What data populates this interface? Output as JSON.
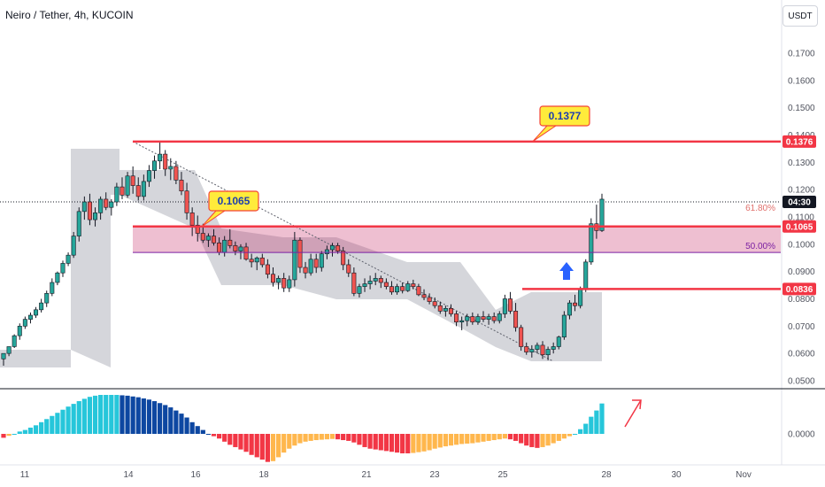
{
  "header": {
    "symbol": "Neiro / Tether, 4h, KUCOIN",
    "currency_button": "USDT"
  },
  "chart_data": {
    "type": "candlestick",
    "title": "Neiro / Tether, 4h, KUCOIN",
    "price_axis": {
      "ticks": [
        "0.1700",
        "0.1600",
        "0.1500",
        "0.1400",
        "0.1300",
        "0.1200",
        "0.1100",
        "0.1000",
        "0.0900",
        "0.0800",
        "0.0700",
        "0.0600",
        "0.0500"
      ],
      "range": [
        0.0485,
        0.179
      ]
    },
    "time_axis": {
      "labels": [
        "11",
        "14",
        "16",
        "18",
        "21",
        "23",
        "25",
        "28",
        "30",
        "Nov"
      ]
    },
    "candles": [
      [
        0.058,
        0.06,
        0.0555,
        0.06
      ],
      [
        0.06,
        0.0625,
        0.059,
        0.0625
      ],
      [
        0.0625,
        0.067,
        0.062,
        0.0665
      ],
      [
        0.0665,
        0.071,
        0.065,
        0.07
      ],
      [
        0.07,
        0.0735,
        0.069,
        0.0725
      ],
      [
        0.0725,
        0.075,
        0.071,
        0.074
      ],
      [
        0.074,
        0.077,
        0.073,
        0.076
      ],
      [
        0.076,
        0.08,
        0.075,
        0.0785
      ],
      [
        0.0785,
        0.083,
        0.077,
        0.082
      ],
      [
        0.082,
        0.0875,
        0.081,
        0.086
      ],
      [
        0.086,
        0.09,
        0.085,
        0.0895
      ],
      [
        0.0895,
        0.094,
        0.088,
        0.093
      ],
      [
        0.093,
        0.097,
        0.092,
        0.096
      ],
      [
        0.096,
        0.1045,
        0.095,
        0.103
      ],
      [
        0.103,
        0.1135,
        0.101,
        0.112
      ],
      [
        0.112,
        0.1175,
        0.109,
        0.1155
      ],
      [
        0.1155,
        0.1185,
        0.107,
        0.109
      ],
      [
        0.109,
        0.1135,
        0.1065,
        0.1115
      ],
      [
        0.1115,
        0.1175,
        0.109,
        0.1165
      ],
      [
        0.1165,
        0.119,
        0.1125,
        0.1135
      ],
      [
        0.1135,
        0.1165,
        0.1105,
        0.1155
      ],
      [
        0.1155,
        0.1225,
        0.114,
        0.121
      ],
      [
        0.121,
        0.1245,
        0.1165,
        0.118
      ],
      [
        0.118,
        0.1265,
        0.117,
        0.125
      ],
      [
        0.125,
        0.1285,
        0.1185,
        0.1215
      ],
      [
        0.1215,
        0.1245,
        0.116,
        0.1175
      ],
      [
        0.1175,
        0.1255,
        0.116,
        0.123
      ],
      [
        0.123,
        0.129,
        0.121,
        0.127
      ],
      [
        0.127,
        0.1325,
        0.124,
        0.1305
      ],
      [
        0.1305,
        0.1378,
        0.1275,
        0.133
      ],
      [
        0.133,
        0.1345,
        0.125,
        0.1275
      ],
      [
        0.1275,
        0.1315,
        0.1235,
        0.1285
      ],
      [
        0.1285,
        0.1305,
        0.122,
        0.1235
      ],
      [
        0.1235,
        0.1265,
        0.118,
        0.1195
      ],
      [
        0.1195,
        0.1225,
        0.109,
        0.1115
      ],
      [
        0.1115,
        0.1135,
        0.103,
        0.107
      ],
      [
        0.107,
        0.1105,
        0.101,
        0.104
      ],
      [
        0.104,
        0.1075,
        0.1005,
        0.1015
      ],
      [
        0.1015,
        0.104,
        0.099,
        0.103
      ],
      [
        0.103,
        0.1055,
        0.0995,
        0.1005
      ],
      [
        0.1005,
        0.1025,
        0.096,
        0.097
      ],
      [
        0.097,
        0.103,
        0.0955,
        0.1015
      ],
      [
        0.1015,
        0.1055,
        0.0985,
        0.0995
      ],
      [
        0.0995,
        0.101,
        0.096,
        0.0975
      ],
      [
        0.0975,
        0.1,
        0.0945,
        0.099
      ],
      [
        0.099,
        0.1005,
        0.094,
        0.0945
      ],
      [
        0.0945,
        0.0965,
        0.0915,
        0.0935
      ],
      [
        0.0935,
        0.0955,
        0.0905,
        0.095
      ],
      [
        0.095,
        0.0965,
        0.0915,
        0.0925
      ],
      [
        0.0925,
        0.0945,
        0.0875,
        0.089
      ],
      [
        0.089,
        0.0915,
        0.0845,
        0.086
      ],
      [
        0.086,
        0.0885,
        0.0835,
        0.0875
      ],
      [
        0.0875,
        0.0895,
        0.0825,
        0.084
      ],
      [
        0.084,
        0.0885,
        0.0825,
        0.087
      ],
      [
        0.087,
        0.1045,
        0.0845,
        0.1015
      ],
      [
        0.1015,
        0.1025,
        0.0895,
        0.0915
      ],
      [
        0.0915,
        0.0935,
        0.0875,
        0.0895
      ],
      [
        0.0895,
        0.0965,
        0.0885,
        0.0945
      ],
      [
        0.0945,
        0.0965,
        0.0895,
        0.0915
      ],
      [
        0.0915,
        0.0975,
        0.09,
        0.0965
      ],
      [
        0.0965,
        0.0995,
        0.0945,
        0.098
      ],
      [
        0.098,
        0.1005,
        0.0955,
        0.0995
      ],
      [
        0.0995,
        0.1005,
        0.0965,
        0.0975
      ],
      [
        0.0975,
        0.099,
        0.0905,
        0.0925
      ],
      [
        0.0925,
        0.0945,
        0.088,
        0.0895
      ],
      [
        0.0895,
        0.0915,
        0.081,
        0.082
      ],
      [
        0.082,
        0.0855,
        0.0805,
        0.0845
      ],
      [
        0.0845,
        0.0875,
        0.0825,
        0.0855
      ],
      [
        0.0855,
        0.0885,
        0.0835,
        0.0865
      ],
      [
        0.0865,
        0.0895,
        0.085,
        0.0875
      ],
      [
        0.0875,
        0.0885,
        0.084,
        0.086
      ],
      [
        0.086,
        0.0875,
        0.0835,
        0.0845
      ],
      [
        0.0845,
        0.0865,
        0.0815,
        0.0825
      ],
      [
        0.0825,
        0.0855,
        0.0815,
        0.0845
      ],
      [
        0.0845,
        0.086,
        0.082,
        0.083
      ],
      [
        0.083,
        0.0865,
        0.0825,
        0.0855
      ],
      [
        0.0855,
        0.087,
        0.0835,
        0.0845
      ],
      [
        0.0845,
        0.0855,
        0.081,
        0.0815
      ],
      [
        0.0815,
        0.0835,
        0.0795,
        0.0805
      ],
      [
        0.0805,
        0.082,
        0.078,
        0.079
      ],
      [
        0.079,
        0.0805,
        0.0765,
        0.0775
      ],
      [
        0.0775,
        0.079,
        0.0745,
        0.0755
      ],
      [
        0.0755,
        0.0775,
        0.0735,
        0.0765
      ],
      [
        0.0765,
        0.078,
        0.0735,
        0.0745
      ],
      [
        0.0745,
        0.0755,
        0.07,
        0.0715
      ],
      [
        0.0715,
        0.0735,
        0.0685,
        0.072
      ],
      [
        0.072,
        0.0745,
        0.07,
        0.0735
      ],
      [
        0.0735,
        0.075,
        0.0705,
        0.0715
      ],
      [
        0.0715,
        0.0745,
        0.0705,
        0.0735
      ],
      [
        0.0735,
        0.0755,
        0.0715,
        0.0725
      ],
      [
        0.0725,
        0.0745,
        0.0705,
        0.0735
      ],
      [
        0.0735,
        0.075,
        0.071,
        0.072
      ],
      [
        0.072,
        0.0755,
        0.071,
        0.0745
      ],
      [
        0.0745,
        0.0815,
        0.073,
        0.08
      ],
      [
        0.08,
        0.0825,
        0.0745,
        0.0755
      ],
      [
        0.0755,
        0.0785,
        0.068,
        0.0695
      ],
      [
        0.0695,
        0.0705,
        0.061,
        0.0625
      ],
      [
        0.0625,
        0.064,
        0.0595,
        0.0605
      ],
      [
        0.0605,
        0.063,
        0.0585,
        0.0615
      ],
      [
        0.0615,
        0.064,
        0.06,
        0.063
      ],
      [
        0.063,
        0.0645,
        0.058,
        0.0595
      ],
      [
        0.0595,
        0.0625,
        0.0575,
        0.0615
      ],
      [
        0.0615,
        0.064,
        0.06,
        0.0625
      ],
      [
        0.0625,
        0.0665,
        0.0615,
        0.066
      ],
      [
        0.066,
        0.0755,
        0.065,
        0.074
      ],
      [
        0.074,
        0.0795,
        0.0725,
        0.0785
      ],
      [
        0.0785,
        0.0815,
        0.0755,
        0.0775
      ],
      [
        0.0775,
        0.0845,
        0.0765,
        0.0835
      ],
      [
        0.0835,
        0.0945,
        0.0825,
        0.0935
      ],
      [
        0.0935,
        0.1095,
        0.0925,
        0.1075
      ],
      [
        0.1075,
        0.1145,
        0.102,
        0.105
      ],
      [
        0.105,
        0.1185,
        0.1045,
        0.1165
      ]
    ],
    "oscillator": [
      -0.1,
      -0.05,
      0.0,
      0.06,
      0.1,
      0.16,
      0.22,
      0.3,
      0.38,
      0.46,
      0.54,
      0.62,
      0.7,
      0.77,
      0.84,
      0.9,
      0.95,
      0.98,
      1.0,
      1.0,
      1.0,
      1.0,
      0.99,
      0.98,
      0.96,
      0.94,
      0.91,
      0.88,
      0.84,
      0.79,
      0.74,
      0.68,
      0.6,
      0.52,
      0.42,
      0.3,
      0.2,
      0.1,
      0.0,
      -0.06,
      -0.12,
      -0.2,
      -0.28,
      -0.34,
      -0.4,
      -0.46,
      -0.54,
      -0.6,
      -0.66,
      -0.72,
      -0.7,
      -0.6,
      -0.48,
      -0.38,
      -0.3,
      -0.24,
      -0.2,
      -0.18,
      -0.16,
      -0.15,
      -0.14,
      -0.13,
      -0.14,
      -0.16,
      -0.18,
      -0.22,
      -0.28,
      -0.34,
      -0.38,
      -0.4,
      -0.42,
      -0.44,
      -0.46,
      -0.48,
      -0.5,
      -0.5,
      -0.49,
      -0.47,
      -0.45,
      -0.42,
      -0.38,
      -0.35,
      -0.32,
      -0.3,
      -0.28,
      -0.26,
      -0.25,
      -0.24,
      -0.22,
      -0.2,
      -0.18,
      -0.16,
      -0.14,
      -0.12,
      -0.14,
      -0.18,
      -0.24,
      -0.3,
      -0.34,
      -0.36,
      -0.34,
      -0.3,
      -0.24,
      -0.18,
      -0.12,
      -0.06,
      0.0,
      0.12,
      0.26,
      0.44,
      0.6,
      0.78
    ],
    "oscillator_axis_label": "0.0000",
    "levels": {
      "resistance_high": {
        "label": "0.1376",
        "price": 0.1376
      },
      "current": {
        "label": "04:30",
        "price": 0.1155
      },
      "mid_level": {
        "label": "0.1065",
        "price": 0.1065
      },
      "support": {
        "label": "0.0836",
        "price": 0.0836
      }
    },
    "fibonacci": [
      {
        "label": "61.80%",
        "price": 0.111,
        "color": "#e0706c"
      },
      {
        "label": "50.00%",
        "price": 0.097,
        "color": "#7b1fa2"
      }
    ],
    "callouts": [
      {
        "text": "0.1377",
        "price": 0.1377
      },
      {
        "text": "0.1065",
        "price": 0.1065
      }
    ],
    "colors": {
      "bull": "#26a69a",
      "bear": "#ef5350",
      "level": "#f23645",
      "zone": "#c2185b",
      "callout_bg": "#ffeb3b",
      "callout_border": "#f44336",
      "osc_pos_strong": "#26c6da",
      "osc_pos_weak": "#0d47a1",
      "osc_neg_strong": "#f23645",
      "osc_neg_weak": "#ffb74d",
      "arrow_up": "#2962ff"
    }
  }
}
